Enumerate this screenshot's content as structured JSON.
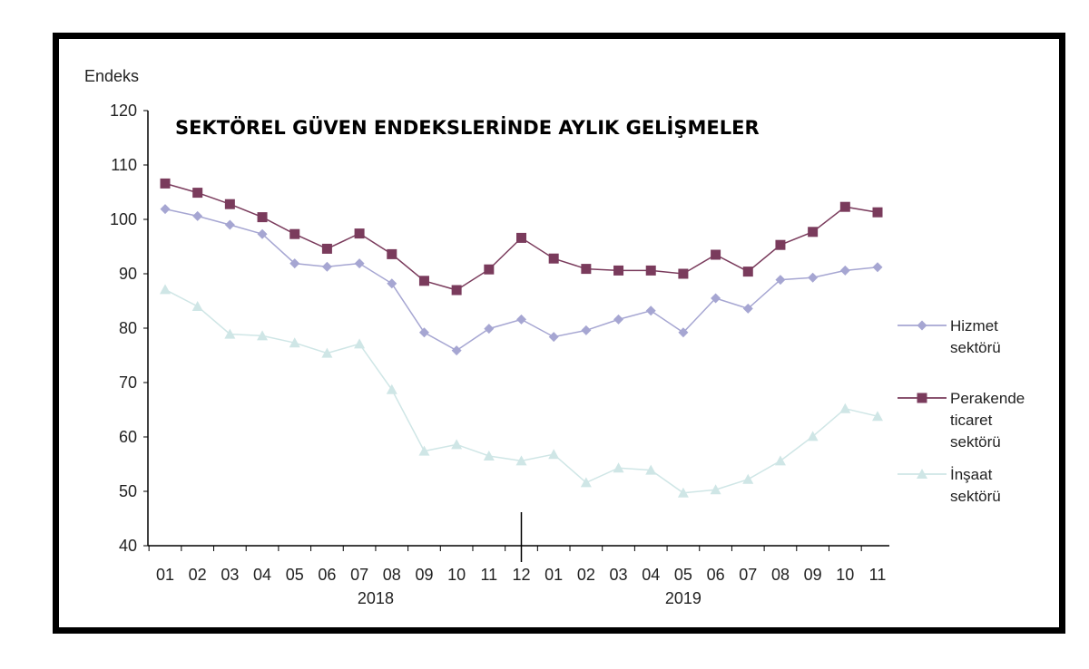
{
  "chart_data": {
    "type": "line",
    "title": "SEKTÖREL GÜVEN ENDEKSLERİNDE AYLIK GELİŞMELER",
    "ylabel": "Endeks",
    "xlabel": "",
    "ylim": [
      40,
      120
    ],
    "yticks": [
      40,
      50,
      60,
      70,
      80,
      90,
      100,
      110,
      120
    ],
    "categories": [
      "01",
      "02",
      "03",
      "04",
      "05",
      "06",
      "07",
      "08",
      "09",
      "10",
      "11",
      "12",
      "01",
      "02",
      "03",
      "04",
      "05",
      "06",
      "07",
      "08",
      "09",
      "10",
      "11"
    ],
    "year_labels": [
      {
        "label": "2018",
        "at_index": 6.5
      },
      {
        "label": "2019",
        "at_index": 16
      }
    ],
    "year_separator_after_index": 11,
    "grid": false,
    "legend_position": "right",
    "series": [
      {
        "name": "Hizmet sektörü",
        "legend_lines": [
          "Hizmet",
          "sektörü"
        ],
        "color": "#a6a6d2",
        "marker": "diamond",
        "values": [
          101.9,
          100.6,
          99.0,
          97.3,
          91.9,
          91.3,
          91.9,
          88.2,
          79.2,
          75.9,
          79.9,
          81.6,
          78.4,
          79.6,
          81.6,
          83.2,
          79.2,
          85.5,
          83.6,
          88.9,
          89.3,
          90.6,
          91.2
        ]
      },
      {
        "name": "Perakende ticaret sektörü",
        "legend_lines": [
          "Perakende",
          "ticaret",
          "sektörü"
        ],
        "color": "#7a3b5c",
        "marker": "square",
        "values": [
          106.6,
          104.9,
          102.8,
          100.4,
          97.3,
          94.6,
          97.4,
          93.6,
          88.7,
          87.0,
          90.8,
          96.6,
          92.8,
          90.9,
          90.6,
          90.6,
          90.0,
          93.5,
          90.4,
          95.3,
          97.7,
          102.3,
          101.3
        ]
      },
      {
        "name": "İnşaat sektörü",
        "legend_lines": [
          "İnşaat",
          "sektörü"
        ],
        "color": "#cfe6e6",
        "marker": "triangle",
        "values": [
          87.1,
          84.0,
          78.9,
          78.6,
          77.3,
          75.4,
          77.1,
          68.7,
          57.4,
          58.6,
          56.5,
          55.6,
          56.8,
          51.6,
          54.3,
          53.9,
          49.7,
          50.3,
          52.2,
          55.6,
          60.1,
          65.2,
          63.8
        ]
      }
    ]
  }
}
